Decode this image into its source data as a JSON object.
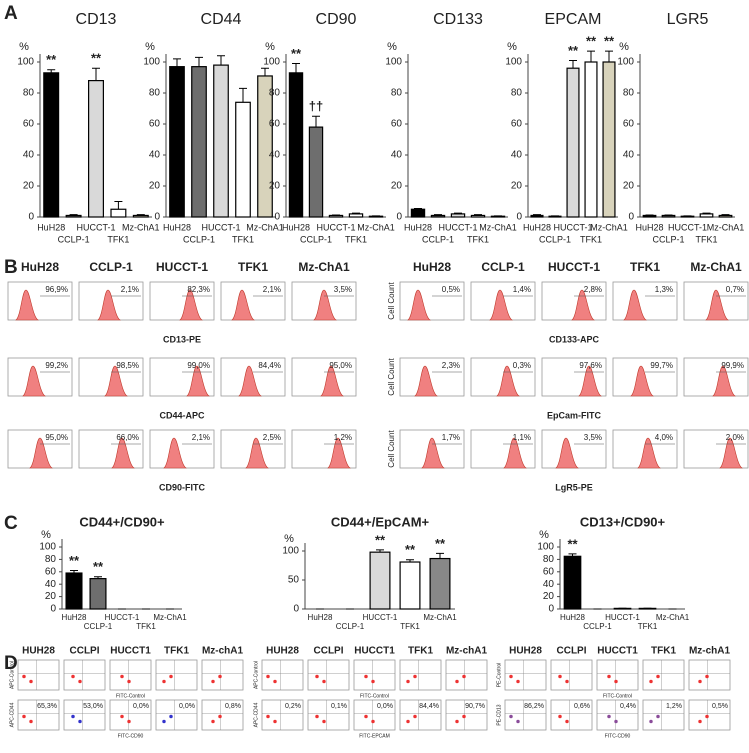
{
  "panel_labels": [
    "A",
    "B",
    "C",
    "D"
  ],
  "chart_data": [
    {
      "type": "bar",
      "title": "CD13",
      "y_unit": "%",
      "categories": [
        "HuH28",
        "CCLP-1",
        "HUCCT-1",
        "TFK1",
        "Mz-ChA1"
      ],
      "values": [
        93,
        1,
        88,
        5,
        1
      ],
      "errors": [
        2,
        0.5,
        8,
        5,
        0.5
      ],
      "value_annotations": [
        "**",
        null,
        "**",
        null,
        null
      ],
      "colors": [
        "#000000",
        "#6e6e6e",
        "#d9d9d9",
        "#ffffff",
        "#d8d3bb"
      ],
      "ylim": [
        0,
        100
      ],
      "yticks": [
        0,
        20,
        40,
        60,
        80,
        100
      ]
    },
    {
      "type": "bar",
      "title": "CD44",
      "y_unit": "%",
      "categories": [
        "HuH28",
        "CCLP-1",
        "HUCCT-1",
        "TFK1",
        "Mz-ChA1"
      ],
      "values": [
        97,
        97,
        98,
        74,
        91
      ],
      "errors": [
        5,
        6,
        6,
        9,
        5
      ],
      "value_annotations": [
        null,
        null,
        null,
        null,
        null
      ],
      "colors": [
        "#000000",
        "#6e6e6e",
        "#d9d9d9",
        "#ffffff",
        "#d8d3bb"
      ],
      "ylim": [
        0,
        100
      ],
      "yticks": [
        0,
        20,
        40,
        60,
        80,
        100
      ]
    },
    {
      "type": "bar",
      "title": "CD90",
      "y_unit": "%",
      "categories": [
        "HuH28",
        "CCLP-1",
        "HUCCT-1",
        "TFK1",
        "Mz-ChA1"
      ],
      "values": [
        93,
        58,
        1,
        2,
        0.5
      ],
      "errors": [
        6,
        7,
        0.3,
        0.5,
        0.2
      ],
      "value_annotations": [
        "**",
        "††",
        null,
        null,
        null
      ],
      "colors": [
        "#000000",
        "#6e6e6e",
        "#d9d9d9",
        "#ffffff",
        "#d8d3bb"
      ],
      "ylim": [
        0,
        100
      ],
      "yticks": [
        0,
        20,
        40,
        60,
        80,
        100
      ]
    },
    {
      "type": "bar",
      "title": "CD133",
      "y_unit": "%",
      "categories": [
        "HuH28",
        "CCLP-1",
        "HUCCT-1",
        "TFK1",
        "Mz-ChA1"
      ],
      "values": [
        5,
        1,
        2,
        1,
        0.5
      ],
      "errors": [
        0.5,
        0.5,
        0.5,
        0.5,
        0.2
      ],
      "value_annotations": [
        null,
        null,
        null,
        null,
        null
      ],
      "colors": [
        "#000000",
        "#6e6e6e",
        "#d9d9d9",
        "#ffffff",
        "#d8d3bb"
      ],
      "ylim": [
        0,
        100
      ],
      "yticks": [
        0,
        20,
        40,
        60,
        80,
        100
      ]
    },
    {
      "type": "bar",
      "title": "EPCAM",
      "y_unit": "%",
      "categories": [
        "HuH28",
        "CCLP-1",
        "HUCCT-1",
        "TFK1",
        "Mz-ChA1"
      ],
      "values": [
        1,
        0.5,
        96,
        100,
        100
      ],
      "errors": [
        0.5,
        0.2,
        5,
        7,
        7
      ],
      "value_annotations": [
        null,
        null,
        "**",
        "**",
        "**"
      ],
      "colors": [
        "#000000",
        "#6e6e6e",
        "#d9d9d9",
        "#ffffff",
        "#d8d3bb"
      ],
      "ylim": [
        0,
        100
      ],
      "yticks": [
        0,
        20,
        40,
        60,
        80,
        100
      ]
    },
    {
      "type": "bar",
      "title": "LGR5",
      "y_unit": "%",
      "categories": [
        "HuH28",
        "CCLP-1",
        "HUCCT-1",
        "TFK1",
        "Mz-ChA1"
      ],
      "values": [
        1,
        1,
        0.5,
        2,
        1
      ],
      "errors": [
        0.3,
        0.3,
        0.2,
        0.5,
        0.5
      ],
      "value_annotations": [
        null,
        null,
        null,
        null,
        null
      ],
      "colors": [
        "#000000",
        "#6e6e6e",
        "#d9d9d9",
        "#ffffff",
        "#d8d3bb"
      ],
      "ylim": [
        0,
        100
      ],
      "yticks": [
        0,
        20,
        40,
        60,
        80,
        100
      ]
    },
    {
      "type": "bar",
      "title": "CD44+/CD90+",
      "y_unit": "%",
      "categories": [
        "HuH28",
        "CCLP-1",
        "HUCCT-1",
        "TFK1",
        "Mz-ChA1"
      ],
      "values": [
        58,
        49,
        0,
        0,
        0
      ],
      "errors": [
        4,
        3,
        0,
        0,
        0
      ],
      "value_annotations": [
        "**",
        "**",
        null,
        null,
        null
      ],
      "colors": [
        "#000000",
        "#6e6e6e",
        "#d9d9d9",
        "#ffffff",
        "#888888"
      ],
      "ylim": [
        0,
        100
      ],
      "yticks": [
        0,
        20,
        40,
        60,
        80,
        100
      ]
    },
    {
      "type": "bar",
      "title": "CD44+/EpCAM+",
      "y_unit": "%",
      "categories": [
        "HuH28",
        "CCLP-1",
        "HUCCT-1",
        "TFK1",
        "Mz-ChA1"
      ],
      "values": [
        0,
        0,
        98,
        81,
        87
      ],
      "errors": [
        0,
        0,
        4,
        4,
        9
      ],
      "value_annotations": [
        null,
        null,
        "**",
        "**",
        "**"
      ],
      "colors": [
        "#000000",
        "#6e6e6e",
        "#d9d9d9",
        "#ffffff",
        "#888888"
      ],
      "ylim": [
        0,
        100
      ],
      "yticks": [
        0,
        50,
        100
      ]
    },
    {
      "type": "bar",
      "title": "CD13+/CD90+",
      "y_unit": "%",
      "categories": [
        "HuH28",
        "CCLP-1",
        "HUCCT-1",
        "TFK1",
        "Mz-ChA1"
      ],
      "values": [
        85,
        0,
        1,
        1,
        0
      ],
      "errors": [
        4,
        0,
        0.3,
        0.3,
        0
      ],
      "value_annotations": [
        "**",
        null,
        null,
        null,
        null
      ],
      "colors": [
        "#000000",
        "#6e6e6e",
        "#d9d9d9",
        "#ffffff",
        "#888888"
      ],
      "ylim": [
        0,
        100
      ],
      "yticks": [
        0,
        20,
        40,
        60,
        80,
        100
      ]
    }
  ],
  "flow_histograms": [
    {
      "headers": [
        "HuH28",
        "CCLP-1",
        "HUCCT-1",
        "TFK1",
        "Mz-ChA1"
      ],
      "y_label": null,
      "rows": [
        {
          "label": "CD13-PE",
          "percents": [
            "96,9%",
            "2,1%",
            "82,3%",
            "2,1%",
            "3,5%"
          ]
        },
        {
          "label": "CD44-APC",
          "percents": [
            "99,2%",
            "98,5%",
            "99,0%",
            "84,4%",
            "95,0%"
          ]
        },
        {
          "label": "CD90-FITC",
          "percents": [
            "95,0%",
            "66,0%",
            "2,1%",
            "2,5%",
            "1,2%"
          ]
        }
      ]
    },
    {
      "headers": [
        "HuH28",
        "CCLP-1",
        "HUCCT-1",
        "TFK1",
        "Mz-ChA1"
      ],
      "y_label": "Cell Count",
      "rows": [
        {
          "label": "CD133-APC",
          "percents": [
            "0,5%",
            "1,4%",
            "2,8%",
            "1,3%",
            "0,7%"
          ]
        },
        {
          "label": "EpCam-FITC",
          "percents": [
            "2,3%",
            "0,3%",
            "97,6%",
            "99,7%",
            "99,9%"
          ]
        },
        {
          "label": "LgR5-PE",
          "percents": [
            "1,7%",
            "1,1%",
            "3,5%",
            "4,0%",
            "2,0%"
          ]
        }
      ]
    }
  ],
  "flow_scatter": [
    {
      "headers": [
        "HUH28",
        "CCLPI",
        "HUCCT1",
        "TFK1",
        "Mz-chA1"
      ],
      "top_x_label": "FITC-Control",
      "bottom_x_label": "FITC-CD90",
      "top_y_label": "APC-Control",
      "bottom_y_label": "APC-CD44",
      "percents": [
        "65,3%",
        "53,0%",
        "0,0%",
        "0,0%",
        "0,8%"
      ]
    },
    {
      "headers": [
        "HUH28",
        "CCLPI",
        "HUCCT1",
        "TFK1",
        "Mz-chA1"
      ],
      "top_x_label": "FITC-Control",
      "bottom_x_label": "FITC-EPCAM",
      "top_y_label": "APC-Control",
      "bottom_y_label": "APC-CD44",
      "percents": [
        "0,2%",
        "0,1%",
        "0,0%",
        "84,4%",
        "90,7%"
      ]
    },
    {
      "headers": [
        "HUH28",
        "CCLPI",
        "HUCCT1",
        "TFK1",
        "Mz-chA1"
      ],
      "top_x_label": "FITC-Control",
      "bottom_x_label": "FITC-CD90",
      "top_y_label": "PE-Control",
      "bottom_y_label": "PE-CD13",
      "percents": [
        "86,2%",
        "0,6%",
        "0,4%",
        "1,2%",
        "0,5%"
      ]
    }
  ]
}
